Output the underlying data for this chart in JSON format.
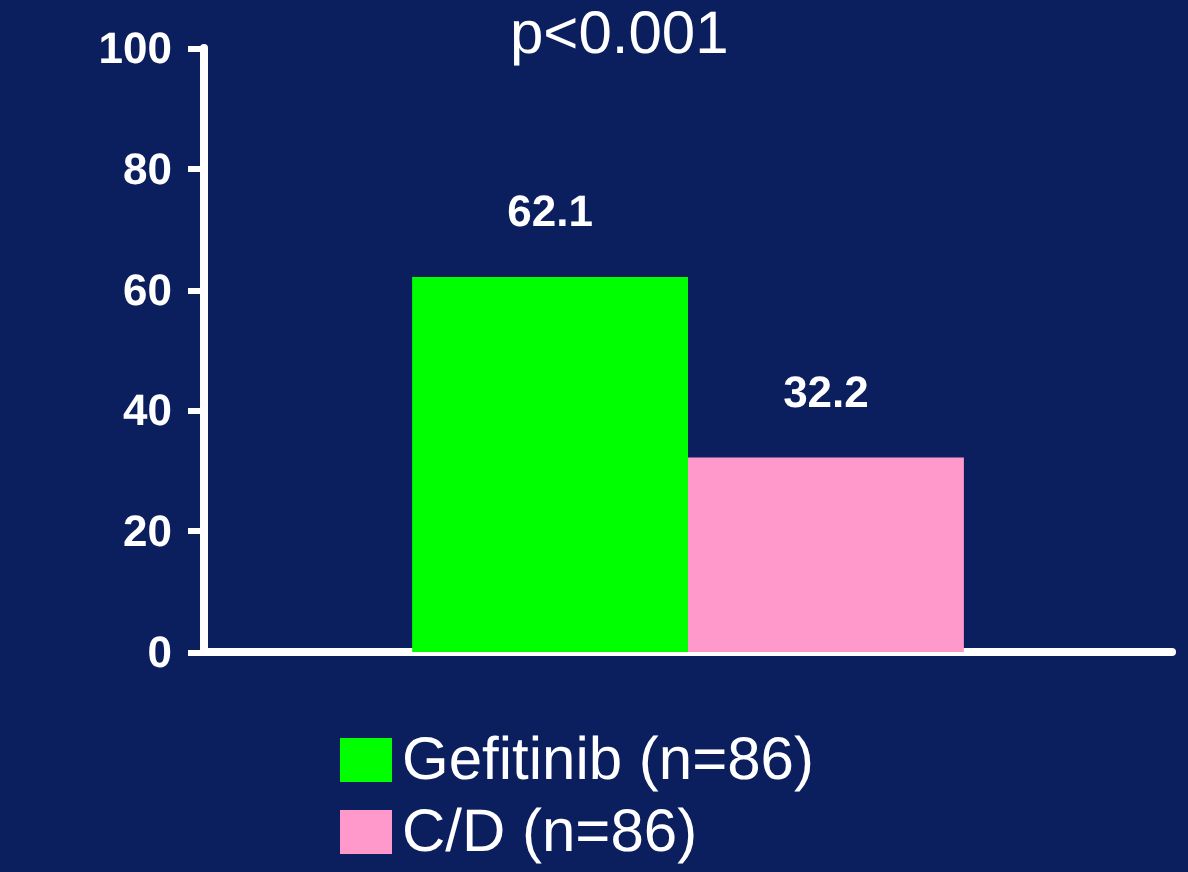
{
  "chart_data": {
    "type": "bar",
    "annotations": [
      "p<0.001"
    ],
    "categories": [
      null
    ],
    "series": [
      {
        "name": "Gefitinib (n=86)",
        "color": "#00ff00",
        "values": [
          62.1
        ]
      },
      {
        "name": "C/D (n=86)",
        "color": "#ff99cc",
        "values": [
          32.2
        ]
      }
    ],
    "ylim": [
      0,
      100
    ],
    "yticks": [
      0,
      20,
      40,
      60,
      80,
      100
    ],
    "data_labels": true,
    "legend": "bottom",
    "grid": false
  }
}
